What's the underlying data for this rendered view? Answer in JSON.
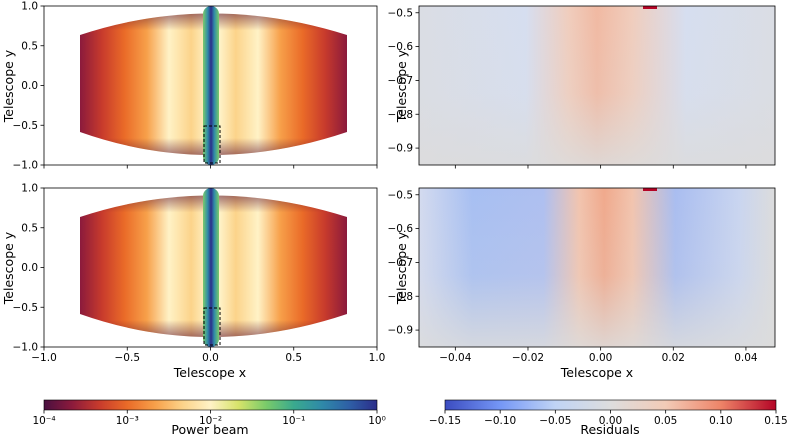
{
  "colors": {
    "inferno_like": [
      "#4a1040",
      "#8b1a3c",
      "#c83b2c",
      "#ea6b28",
      "#f7a04a",
      "#fcd38a",
      "#fff2c6",
      "#ffffe0"
    ],
    "viridis_like": [
      "#2b2d8a",
      "#2e5fa6",
      "#2f8aa8",
      "#3aaa8e",
      "#7acb6a",
      "#d7e36a"
    ],
    "diverging": [
      "#3b4cc0",
      "#7597f6",
      "#c0d4f5",
      "#dddddd",
      "#f2cbb7",
      "#ee8468",
      "#b40426"
    ],
    "frame": "#000000",
    "grey_bg": "#dcdcdc"
  },
  "chart_data": [
    {
      "id": "power-beam-top",
      "type": "heatmap",
      "xlabel": "",
      "ylabel": "Telescope y",
      "xlim": [
        -1.0,
        1.0
      ],
      "ylim": [
        -1.0,
        1.0
      ],
      "xticks": [
        "",
        "",
        "",
        "",
        ""
      ],
      "yticks": [
        "−1.0",
        "−0.5",
        "0.0",
        "0.5",
        "1.0"
      ],
      "dashed_box": {
        "x": [
          -0.05,
          0.05
        ],
        "y": [
          -0.95,
          -0.48
        ]
      }
    },
    {
      "id": "residuals-top",
      "type": "heatmap",
      "xlabel": "",
      "ylabel": "Telescope y",
      "xlim": [
        -0.05,
        0.048
      ],
      "ylim": [
        -0.95,
        -0.48
      ],
      "xticks": [
        "",
        "",
        "",
        "",
        ""
      ],
      "yticks": [
        "−0.9",
        "−0.8",
        "−0.7",
        "−0.6",
        "−0.5"
      ]
    },
    {
      "id": "power-beam-bottom",
      "type": "heatmap",
      "xlabel": "Telescope x",
      "ylabel": "Telescope y",
      "xlim": [
        -1.0,
        1.0
      ],
      "ylim": [
        -1.0,
        1.0
      ],
      "xticks": [
        "−1.0",
        "−0.5",
        "0.0",
        "0.5",
        "1.0"
      ],
      "yticks": [
        "−1.0",
        "−0.5",
        "0.0",
        "0.5",
        "1.0"
      ],
      "dashed_box": {
        "x": [
          -0.05,
          0.05
        ],
        "y": [
          -0.95,
          -0.48
        ]
      }
    },
    {
      "id": "residuals-bottom",
      "type": "heatmap",
      "xlabel": "Telescope x",
      "ylabel": "Telescope y",
      "xlim": [
        -0.05,
        0.048
      ],
      "ylim": [
        -0.95,
        -0.48
      ],
      "xticks": [
        "−0.04",
        "−0.02",
        "0.00",
        "0.02",
        "0.04"
      ],
      "yticks": [
        "−0.9",
        "−0.8",
        "−0.7",
        "−0.6",
        "−0.5"
      ]
    }
  ],
  "colorbars": {
    "power_beam": {
      "label": "Power beam",
      "scale": "log",
      "range": [
        0.0001,
        1
      ],
      "ticks": [
        "10⁻⁴",
        "10⁻³",
        "10⁻²",
        "10⁻¹",
        "10⁰"
      ]
    },
    "residuals": {
      "label": "Residuals",
      "range": [
        -0.15,
        0.15
      ],
      "ticks": [
        "−0.15",
        "−0.10",
        "−0.05",
        "0.00",
        "0.05",
        "0.10",
        "0.15"
      ]
    }
  }
}
